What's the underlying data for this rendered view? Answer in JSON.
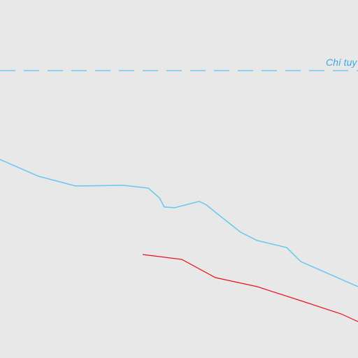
{
  "map": {
    "background_color": "#e8e8e8",
    "tropic_line": {
      "label": "Chí tuy",
      "color": "#5bc0f0",
      "style": "dashed"
    },
    "border_line": {
      "color": "#66c8f2",
      "style": "solid"
    },
    "route_line": {
      "color": "#e8121a",
      "style": "solid"
    }
  }
}
